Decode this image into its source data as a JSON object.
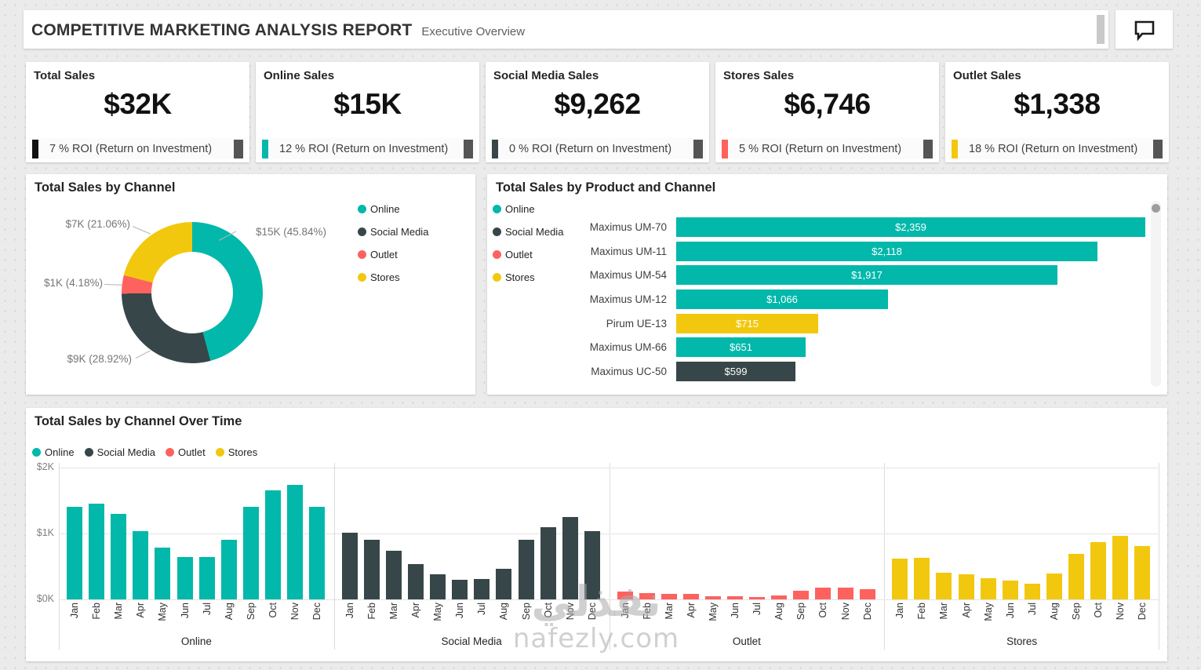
{
  "header": {
    "title": "COMPETITIVE MARKETING ANALYSIS REPORT",
    "subtitle": "Executive Overview"
  },
  "colors": {
    "online": "#01B8AA",
    "social_media": "#374649",
    "outlet": "#FD625E",
    "stores": "#F2C80F"
  },
  "kpi_cards": [
    {
      "title": "Total Sales",
      "value": "$32K",
      "roi_text": "7 % ROI (Return on Investment)",
      "accent": "#111111"
    },
    {
      "title": "Online Sales",
      "value": "$15K",
      "roi_text": "12 % ROI (Return on Investment)",
      "accent": "#01B8AA"
    },
    {
      "title": "Social Media Sales",
      "value": "$9,262",
      "roi_text": "0 % ROI (Return on Investment)",
      "accent": "#374649"
    },
    {
      "title": "Stores Sales",
      "value": "$6,746",
      "roi_text": "5 % ROI (Return on Investment)",
      "accent": "#FD625E"
    },
    {
      "title": "Outlet Sales",
      "value": "$1,338",
      "roi_text": "18 % ROI (Return on Investment)",
      "accent": "#F2C80F"
    }
  ],
  "chart_data": [
    {
      "type": "pie",
      "title": "Total Sales by Channel",
      "legend": [
        "Online",
        "Social Media",
        "Outlet",
        "Stores"
      ],
      "legend_position": "right",
      "slices": [
        {
          "label": "Online",
          "value": 15000,
          "pct": 45.84,
          "value_label": "$15K (45.84%)",
          "color": "#01B8AA"
        },
        {
          "label": "Social Media",
          "value": 9000,
          "pct": 28.92,
          "value_label": "$9K (28.92%)",
          "color": "#374649"
        },
        {
          "label": "Outlet",
          "value": 1000,
          "pct": 4.18,
          "value_label": "$1K (4.18%)",
          "color": "#FD625E"
        },
        {
          "label": "Stores",
          "value": 7000,
          "pct": 21.06,
          "value_label": "$7K (21.06%)",
          "color": "#F2C80F"
        }
      ]
    },
    {
      "type": "bar",
      "title": "Total Sales by Product and Channel",
      "legend": [
        "Online",
        "Social Media",
        "Outlet",
        "Stores"
      ],
      "legend_position": "left",
      "categories": [
        "Maximus UM-70",
        "Maximus UM-11",
        "Maximus UM-54",
        "Maximus UM-12",
        "Pirum UE-13",
        "Maximus UM-66",
        "Maximus UC-50"
      ],
      "values": [
        2359,
        2118,
        1917,
        1066,
        715,
        651,
        599
      ],
      "value_labels": [
        "$2,359",
        "$2,118",
        "$1,917",
        "$1,066",
        "$715",
        "$651",
        "$599"
      ],
      "channels": [
        "Online",
        "Online",
        "Online",
        "Online",
        "Stores",
        "Online",
        "Social Media"
      ],
      "xlim": [
        0,
        2400
      ]
    },
    {
      "type": "bar",
      "title": "Total Sales by Channel Over Time",
      "legend": [
        "Online",
        "Social Media",
        "Outlet",
        "Stores"
      ],
      "legend_position": "top",
      "categories": [
        "Jan",
        "Feb",
        "Mar",
        "Apr",
        "May",
        "Jun",
        "Jul",
        "Aug",
        "Sep",
        "Oct",
        "Nov",
        "Dec"
      ],
      "yticks": [
        "$0K",
        "$1K",
        "$2K"
      ],
      "ylim": [
        0,
        2000
      ],
      "grid": "dotted",
      "series": [
        {
          "name": "Online",
          "values": [
            1400,
            1450,
            1300,
            1040,
            790,
            640,
            640,
            900,
            1410,
            1660,
            1740,
            1410
          ]
        },
        {
          "name": "Social Media",
          "values": [
            1010,
            900,
            740,
            530,
            380,
            300,
            310,
            470,
            910,
            1090,
            1250,
            1040
          ]
        },
        {
          "name": "Outlet",
          "values": [
            120,
            100,
            80,
            80,
            50,
            50,
            40,
            60,
            130,
            180,
            180,
            160
          ]
        },
        {
          "name": "Stores",
          "values": [
            620,
            630,
            400,
            380,
            320,
            290,
            240,
            390,
            690,
            870,
            960,
            810
          ]
        }
      ]
    }
  ],
  "watermark": {
    "line1": "نفذلي",
    "line2": "nafezly.com"
  }
}
